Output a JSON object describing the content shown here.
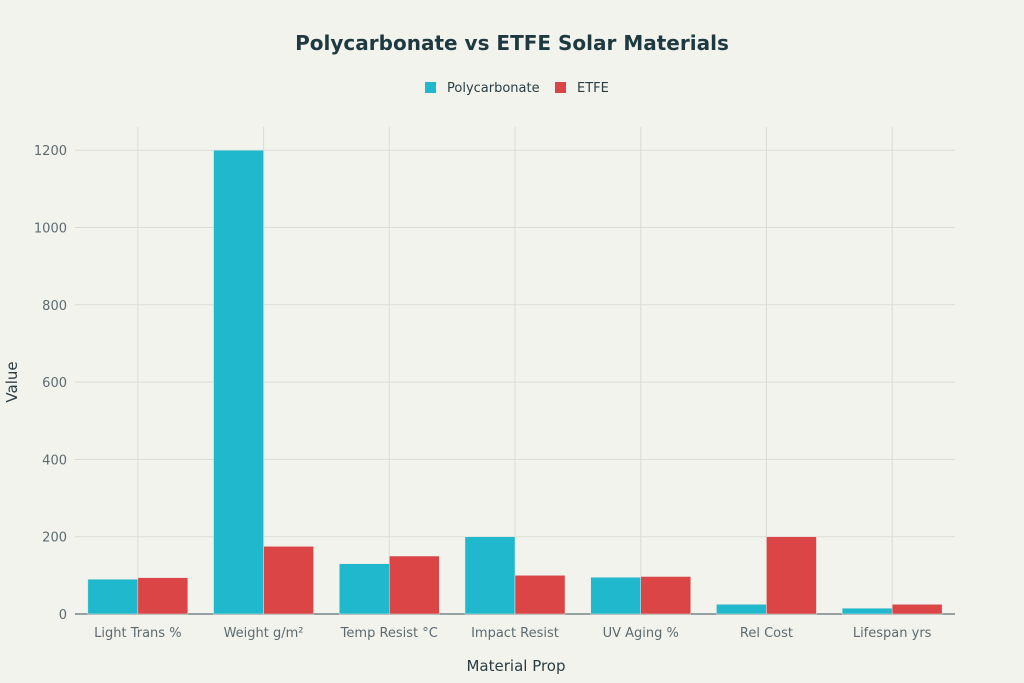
{
  "chart_data": {
    "type": "bar",
    "title": "Polycarbonate vs ETFE Solar Materials",
    "xlabel": "Material Prop",
    "ylabel": "Value",
    "categories": [
      "Light Trans %",
      "Weight g/m²",
      "Temp Resist °C",
      "Impact Resist",
      "UV Aging %",
      "Rel Cost",
      "Lifespan yrs"
    ],
    "series": [
      {
        "name": "Polycarbonate",
        "color": "#1fb8cd",
        "values": [
          90,
          1200,
          130,
          200,
          95,
          25,
          15
        ]
      },
      {
        "name": "ETFE",
        "color": "#db4545",
        "values": [
          94,
          175,
          150,
          100,
          97,
          200,
          25
        ]
      }
    ],
    "ylim": [
      0,
      1260
    ],
    "yticks": [
      0,
      200,
      400,
      600,
      800,
      1000,
      1200
    ],
    "grid": true,
    "legend_placement": "top-center"
  }
}
